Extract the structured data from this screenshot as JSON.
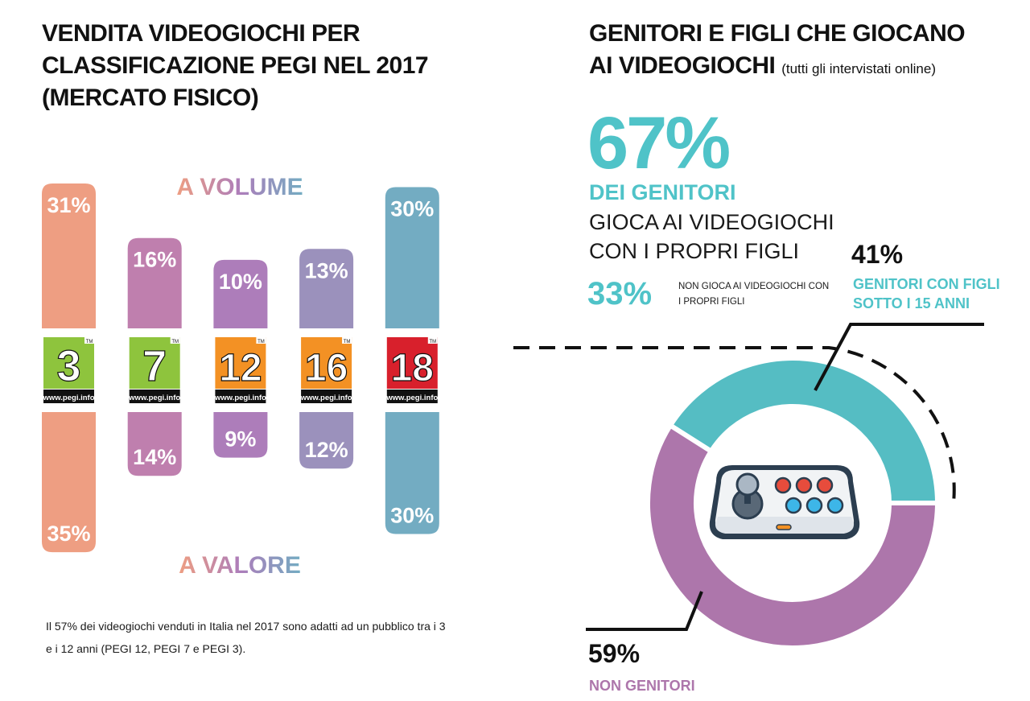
{
  "left_panel": {
    "title_lines": [
      "VENDITA VIDEOGIOCHI PER",
      "CLASSIFICAZIONE PEGI NEL 2017",
      "(MERCATO FISICO)"
    ],
    "note": "Il 57% dei videogiochi venduti in Italia nel 2017 sono adatti ad un pubblico tra i 3 e i 12 anni (PEGI 12, PEGI 7 e PEGI 3)."
  },
  "right_panel": {
    "title_lines": [
      "GENITORI E FIGLI CHE GIOCANO",
      "AI VIDEOGIOCHI"
    ],
    "title_sub": "(tutti gli intervistati online)",
    "big_pct": "67%",
    "big_label": "DEI GENITORI",
    "big_text": "GIOCA AI VIDEOGIOCHI CON I PROPRI FIGLI",
    "small_pct": "33%",
    "small_text": "NON GIOCA AI VIDEOGIOCHI CON I PROPRI FIGLI"
  },
  "chart_data": [
    {
      "type": "bar",
      "axis_top_label": "A VOLUME",
      "axis_bottom_label": "A VALORE",
      "categories": [
        "3",
        "7",
        "12",
        "16",
        "18"
      ],
      "badge_url": "www.pegi.info",
      "badge_tm": "TM",
      "series": [
        {
          "name": "A VOLUME",
          "values": [
            31,
            16,
            10,
            13,
            30
          ],
          "labels": [
            "31%",
            "16%",
            "10%",
            "13%",
            "30%"
          ]
        },
        {
          "name": "A VALORE",
          "values": [
            35,
            14,
            9,
            12,
            30
          ],
          "labels": [
            "35%",
            "14%",
            "9%",
            "12%",
            "30%"
          ]
        }
      ],
      "colors": [
        "#ee9e82",
        "#bf7fae",
        "#ad7dba",
        "#9b91bc",
        "#73acc2"
      ],
      "badge_colors": [
        "#8ec43d",
        "#8ec43d",
        "#f39124",
        "#f39124",
        "#d8202c"
      ]
    },
    {
      "type": "pie",
      "style": "donut",
      "slices": [
        {
          "label": "GENITORI CON FIGLI SOTTO I 15 ANNI",
          "value": 41,
          "display": "41%",
          "color": "#55bdc3"
        },
        {
          "label": "NON GENITORI",
          "value": 59,
          "display": "59%",
          "color": "#ad76ab"
        }
      ]
    }
  ],
  "icons": {
    "center": "arcade-joystick-icon"
  }
}
